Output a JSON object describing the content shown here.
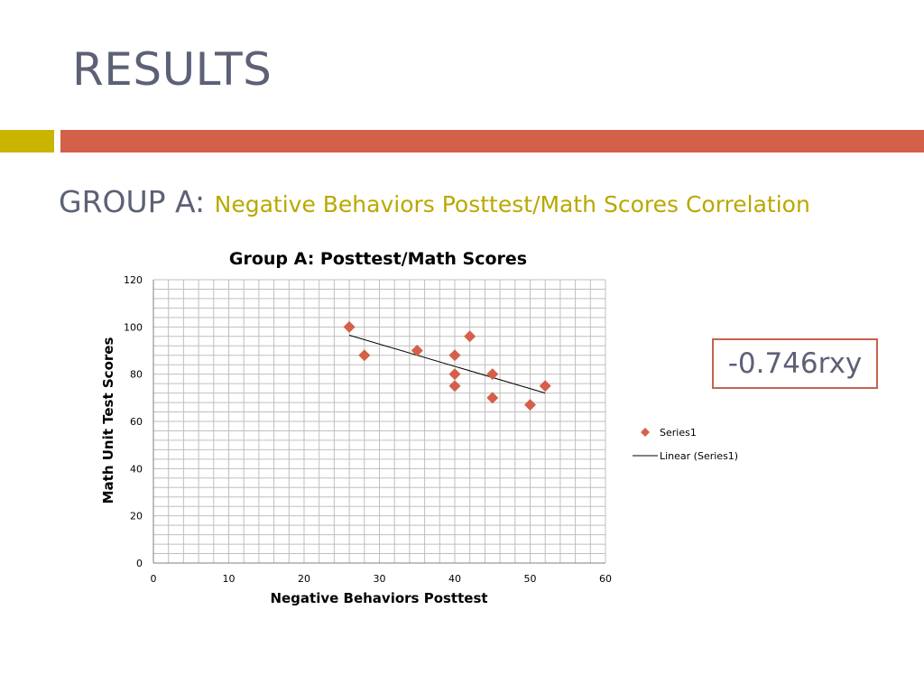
{
  "slide": {
    "title": "RESULTS",
    "subtitle_lead": "GROUP A: ",
    "subtitle_rest": "Negative Behaviors Posttest/Math Scores Correlation",
    "correlation": "-0.746rxy"
  },
  "colors": {
    "title_text": "#5d6176",
    "accent_gold": "#c9b400",
    "accent_red": "#d4604a",
    "marker": "#d4604a",
    "trendline": "#000000",
    "gridline": "#bfbfbf"
  },
  "chart_data": {
    "type": "scatter",
    "title": "Group A: Posttest/Math Scores",
    "xlabel": "Negative Behaviors Posttest",
    "ylabel": "Math Unit Test Scores",
    "xlim": [
      0,
      60
    ],
    "ylim": [
      0,
      120
    ],
    "xticks": [
      0,
      10,
      20,
      30,
      40,
      50,
      60
    ],
    "yticks": [
      0,
      20,
      40,
      60,
      80,
      100,
      120
    ],
    "grid": true,
    "legend_position": "right",
    "series": [
      {
        "name": "Series1",
        "marker": "diamond",
        "points": [
          {
            "x": 26,
            "y": 100
          },
          {
            "x": 28,
            "y": 88
          },
          {
            "x": 35,
            "y": 90
          },
          {
            "x": 40,
            "y": 88
          },
          {
            "x": 40,
            "y": 80
          },
          {
            "x": 40,
            "y": 75
          },
          {
            "x": 42,
            "y": 96
          },
          {
            "x": 45,
            "y": 80
          },
          {
            "x": 45,
            "y": 70
          },
          {
            "x": 50,
            "y": 67
          },
          {
            "x": 52,
            "y": 75
          }
        ]
      }
    ],
    "trendline": {
      "name": "Linear (Series1)",
      "type": "linear",
      "from": {
        "x": 26,
        "y": 96.5
      },
      "to": {
        "x": 52,
        "y": 72
      }
    }
  }
}
